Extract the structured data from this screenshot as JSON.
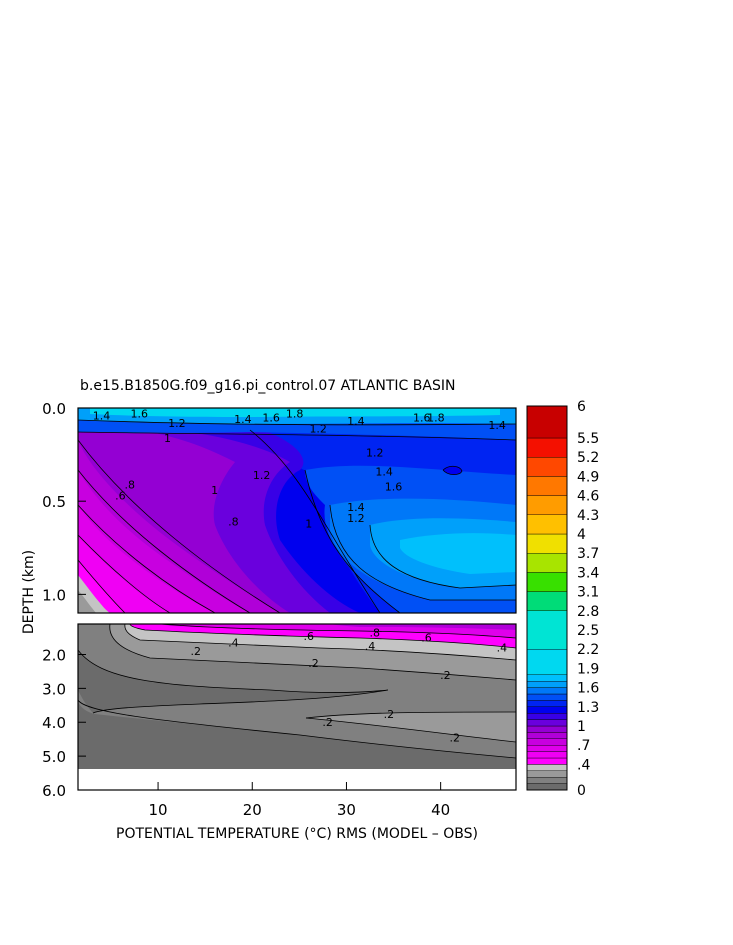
{
  "chart_data": {
    "type": "heatmap",
    "title": "b.e15.B1850G.f09_g16.pi_control.07 ATLANTIC BASIN",
    "xlabel": "POTENTIAL TEMPERATURE (°C) RMS (MODEL – OBS)",
    "ylabel": "DEPTH (km)",
    "x_ticks": [
      "10",
      "20",
      "30",
      "40"
    ],
    "x_tick_values": [
      10,
      20,
      30,
      40
    ],
    "xlim": [
      1.5,
      48
    ],
    "upper_panel": {
      "ylim": [
        0.0,
        1.1
      ],
      "y_ticks": [
        "0.0",
        "0.5",
        "1.0"
      ],
      "y_tick_values": [
        0.0,
        0.5,
        1.0
      ],
      "contour_labels": [
        {
          "text": "1.4",
          "x": 4,
          "y": 0.04
        },
        {
          "text": "1.6",
          "x": 8,
          "y": 0.03
        },
        {
          "text": "1.4",
          "x": 19,
          "y": 0.06
        },
        {
          "text": "1.6",
          "x": 22,
          "y": 0.05
        },
        {
          "text": "1.8",
          "x": 24.5,
          "y": 0.03
        },
        {
          "text": "1.4",
          "x": 31,
          "y": 0.07
        },
        {
          "text": "1.6",
          "x": 38,
          "y": 0.05
        },
        {
          "text": "1.8",
          "x": 39.5,
          "y": 0.05
        },
        {
          "text": "1.4",
          "x": 46,
          "y": 0.09
        },
        {
          "text": "1.2",
          "x": 12,
          "y": 0.08
        },
        {
          "text": "1.2",
          "x": 27,
          "y": 0.11
        },
        {
          "text": "1",
          "x": 11,
          "y": 0.16
        },
        {
          "text": "1.2",
          "x": 33,
          "y": 0.24
        },
        {
          "text": "1.4",
          "x": 34,
          "y": 0.34
        },
        {
          "text": "1.2",
          "x": 21,
          "y": 0.36
        },
        {
          "text": "1.6",
          "x": 35,
          "y": 0.42
        },
        {
          "text": ".8",
          "x": 7,
          "y": 0.41
        },
        {
          "text": ".6",
          "x": 6,
          "y": 0.47
        },
        {
          "text": "1",
          "x": 16,
          "y": 0.44
        },
        {
          "text": "1.4",
          "x": 31,
          "y": 0.53
        },
        {
          "text": "1.2",
          "x": 31,
          "y": 0.59
        },
        {
          "text": ".8",
          "x": 18,
          "y": 0.61
        },
        {
          "text": "1",
          "x": 26,
          "y": 0.62
        }
      ]
    },
    "lower_panel": {
      "ylim": [
        1.1,
        6.0
      ],
      "y_ticks": [
        "2.0",
        "3.0",
        "4.0",
        "5.0",
        "6.0"
      ],
      "y_tick_values": [
        2.0,
        3.0,
        4.0,
        5.0,
        6.0
      ],
      "contour_labels": [
        {
          "text": ".2",
          "x": 14,
          "y": 1.9
        },
        {
          "text": ".4",
          "x": 18,
          "y": 1.65
        },
        {
          "text": ".6",
          "x": 26,
          "y": 1.45
        },
        {
          "text": ".8",
          "x": 33,
          "y": 1.35
        },
        {
          "text": ".4",
          "x": 32.5,
          "y": 1.75
        },
        {
          "text": ".6",
          "x": 38.5,
          "y": 1.5
        },
        {
          "text": ".4",
          "x": 46.5,
          "y": 1.8
        },
        {
          "text": ".2",
          "x": 26.5,
          "y": 2.25
        },
        {
          "text": ".2",
          "x": 40.5,
          "y": 2.6
        },
        {
          "text": ".2",
          "x": 34.5,
          "y": 3.75
        },
        {
          "text": ".2",
          "x": 28,
          "y": 4.0
        },
        {
          "text": ".2",
          "x": 41.5,
          "y": 4.45
        }
      ]
    },
    "colorbar": {
      "labels": [
        "0",
        ".4",
        ".7",
        "1",
        "1.3",
        "1.6",
        "1.9",
        "2.2",
        "2.5",
        "2.8",
        "3.1",
        "3.4",
        "3.7",
        "4",
        "4.3",
        "4.6",
        "4.9",
        "5.2",
        "5.5",
        "6"
      ],
      "label_values": [
        0,
        0.4,
        0.7,
        1.0,
        1.3,
        1.6,
        1.9,
        2.2,
        2.5,
        2.8,
        3.1,
        3.4,
        3.7,
        4.0,
        4.3,
        4.6,
        4.9,
        5.2,
        5.5,
        6.0
      ],
      "bands": [
        {
          "lo": 0.0,
          "hi": 0.1,
          "color": "#6b6b6b"
        },
        {
          "lo": 0.1,
          "hi": 0.2,
          "color": "#808080"
        },
        {
          "lo": 0.2,
          "hi": 0.3,
          "color": "#9a9a9a"
        },
        {
          "lo": 0.3,
          "hi": 0.4,
          "color": "#c4c4c4"
        },
        {
          "lo": 0.4,
          "hi": 0.5,
          "color": "#ff00ff"
        },
        {
          "lo": 0.5,
          "hi": 0.6,
          "color": "#f000f4"
        },
        {
          "lo": 0.6,
          "hi": 0.7,
          "color": "#df00eb"
        },
        {
          "lo": 0.7,
          "hi": 0.8,
          "color": "#c800e0"
        },
        {
          "lo": 0.8,
          "hi": 0.9,
          "color": "#b000d8"
        },
        {
          "lo": 0.9,
          "hi": 1.0,
          "color": "#9400d3"
        },
        {
          "lo": 1.0,
          "hi": 1.1,
          "color": "#6a00dd"
        },
        {
          "lo": 1.1,
          "hi": 1.2,
          "color": "#3800e6"
        },
        {
          "lo": 1.2,
          "hi": 1.3,
          "color": "#0000ee"
        },
        {
          "lo": 1.3,
          "hi": 1.4,
          "color": "#0024f2"
        },
        {
          "lo": 1.4,
          "hi": 1.5,
          "color": "#0050f5"
        },
        {
          "lo": 1.5,
          "hi": 1.6,
          "color": "#0078f8"
        },
        {
          "lo": 1.6,
          "hi": 1.7,
          "color": "#00a0fa"
        },
        {
          "lo": 1.7,
          "hi": 1.8,
          "color": "#00c0fc"
        },
        {
          "lo": 1.8,
          "hi": 2.2,
          "color": "#00d8f0"
        },
        {
          "lo": 2.2,
          "hi": 2.8,
          "color": "#00e4d4"
        },
        {
          "lo": 2.8,
          "hi": 3.1,
          "color": "#00dc78"
        },
        {
          "lo": 3.1,
          "hi": 3.4,
          "color": "#38e000"
        },
        {
          "lo": 3.4,
          "hi": 3.7,
          "color": "#a8e400"
        },
        {
          "lo": 3.7,
          "hi": 4.0,
          "color": "#f0e000"
        },
        {
          "lo": 4.0,
          "hi": 4.3,
          "color": "#ffc000"
        },
        {
          "lo": 4.3,
          "hi": 4.6,
          "color": "#ff9c00"
        },
        {
          "lo": 4.6,
          "hi": 4.9,
          "color": "#ff7800"
        },
        {
          "lo": 4.9,
          "hi": 5.2,
          "color": "#ff4800"
        },
        {
          "lo": 5.2,
          "hi": 5.5,
          "color": "#f41000"
        },
        {
          "lo": 5.5,
          "hi": 6.0,
          "color": "#c80000"
        }
      ]
    },
    "shading": {
      "upper_base_color": "#0000ee",
      "lower_base_color": "#6b6b6b",
      "no_data_color": "#ffffff",
      "contour_line_color": "#000000"
    }
  }
}
